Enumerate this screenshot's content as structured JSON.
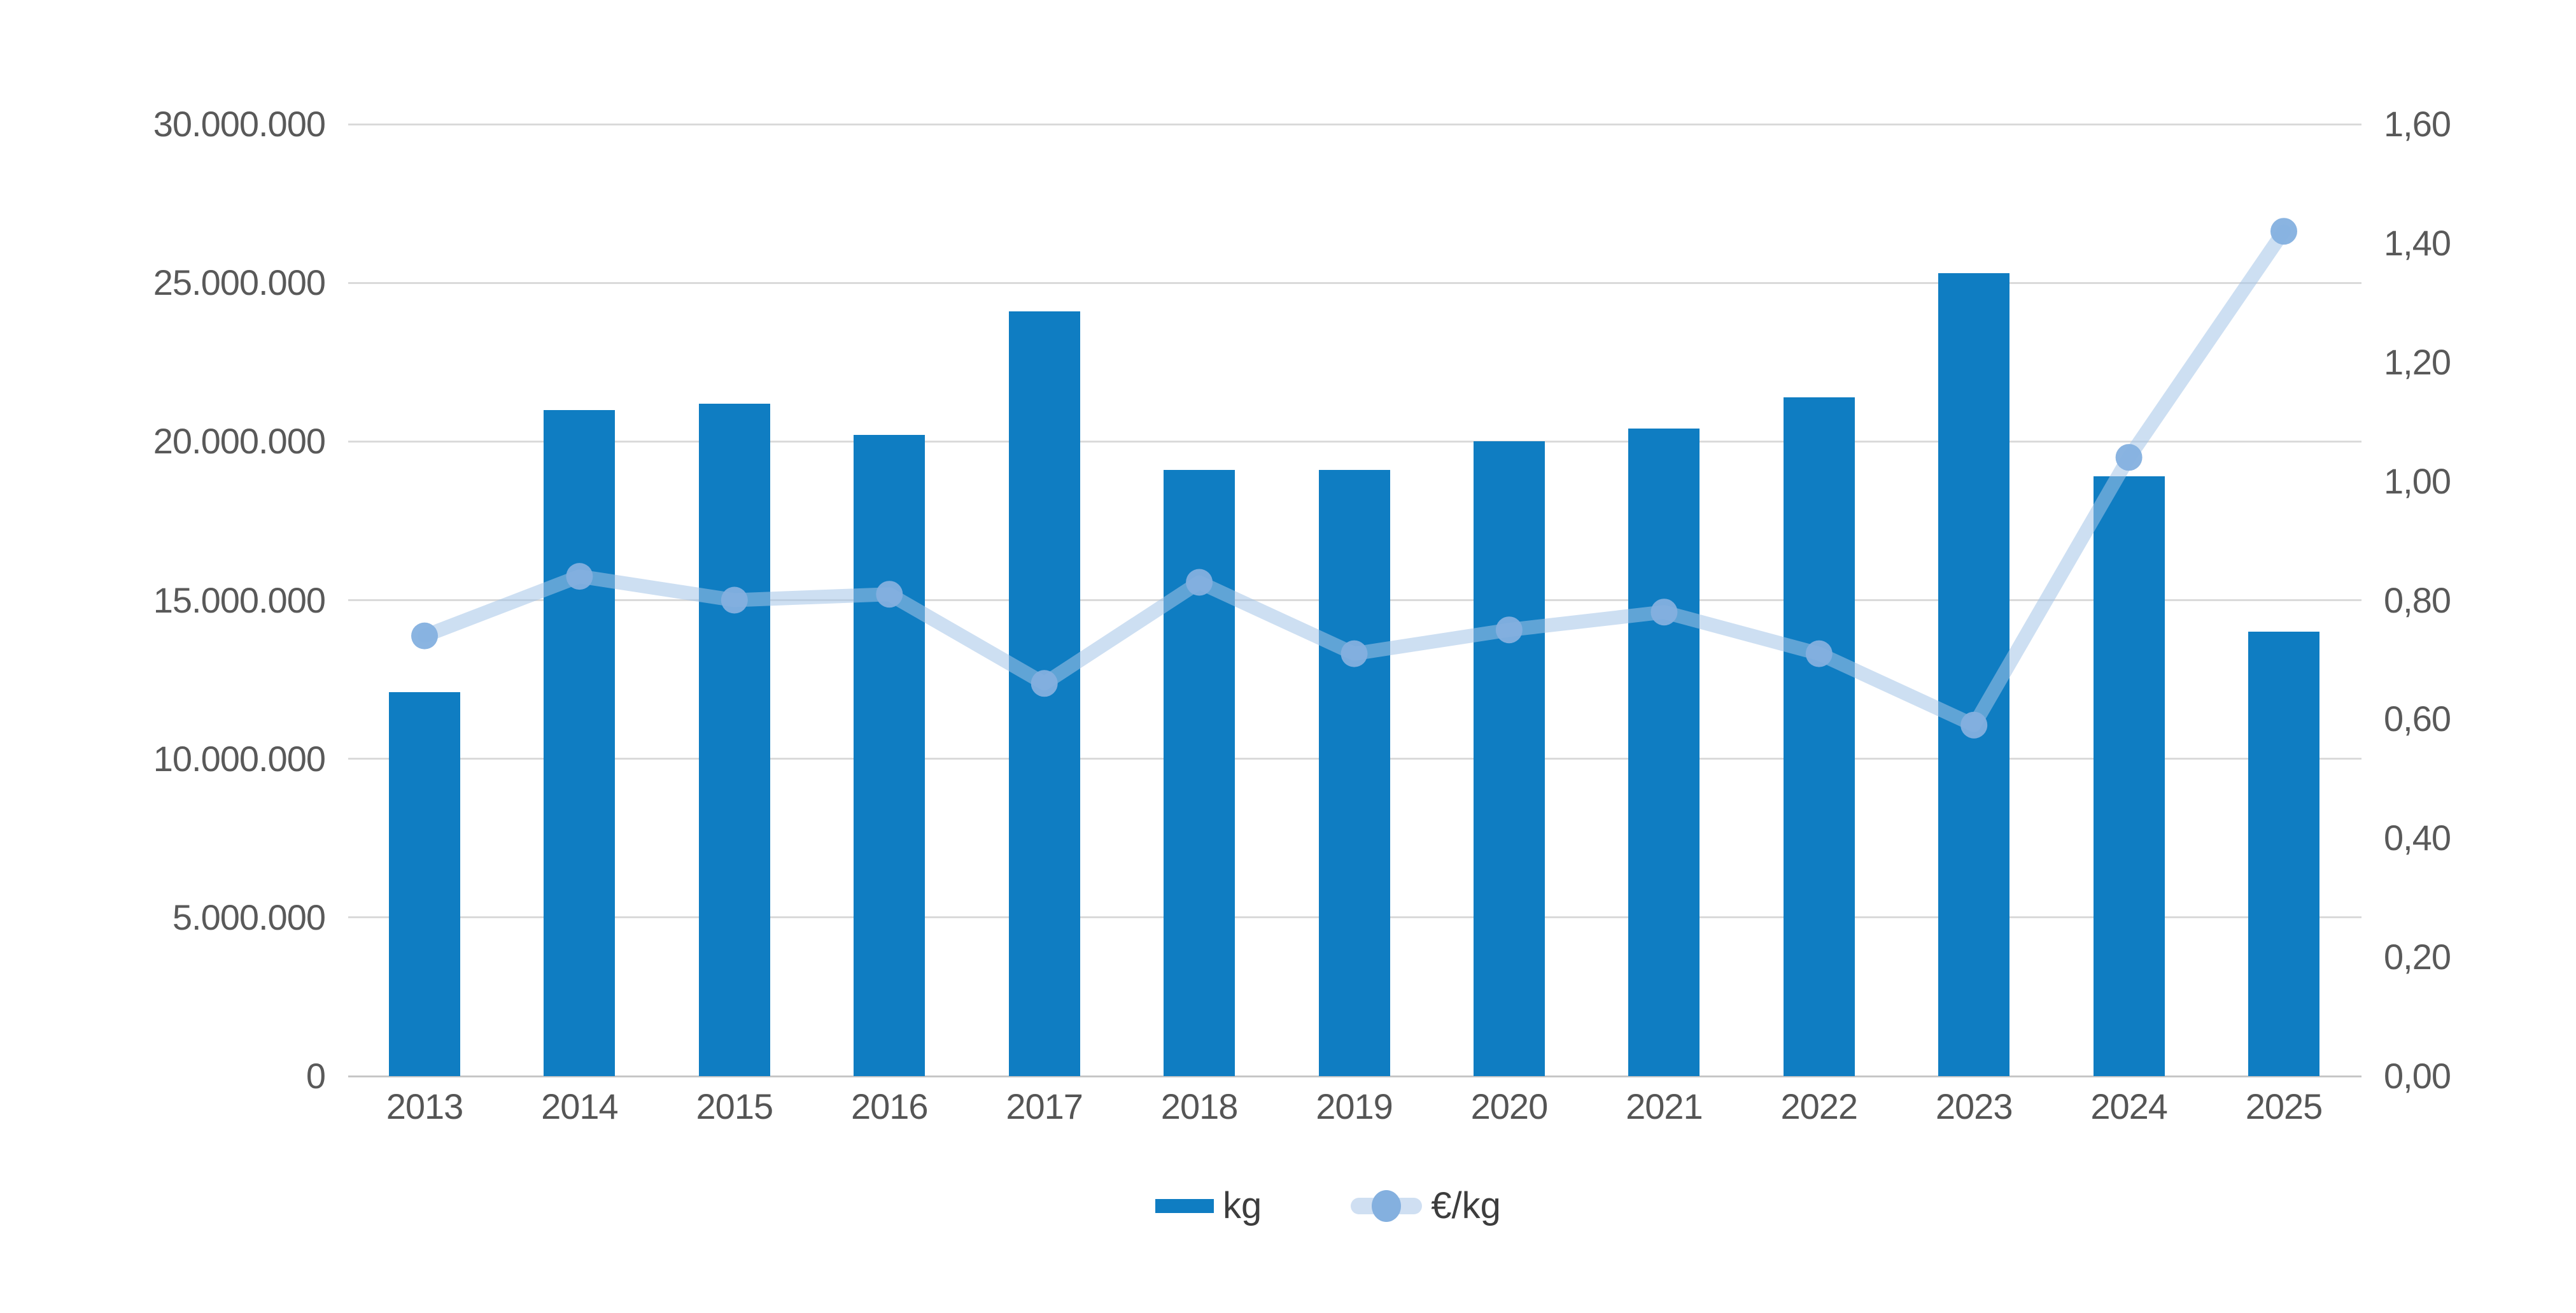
{
  "chart_data": {
    "type": "combo_bar_line",
    "title": "",
    "categories": [
      "2013",
      "2014",
      "2015",
      "2016",
      "2017",
      "2018",
      "2019",
      "2020",
      "2021",
      "2022",
      "2023",
      "2024",
      "2025"
    ],
    "series": [
      {
        "name": "kg",
        "chart": "bar",
        "axis": "left",
        "values": [
          12100000,
          21000000,
          21200000,
          20200000,
          24100000,
          19100000,
          19100000,
          20000000,
          20400000,
          21400000,
          25300000,
          18900000,
          14000000
        ]
      },
      {
        "name": "€/kg",
        "chart": "line",
        "axis": "right",
        "marker": "dot",
        "values": [
          0.74,
          0.84,
          0.8,
          0.81,
          0.66,
          0.83,
          0.71,
          0.75,
          0.78,
          0.71,
          0.59,
          1.04,
          1.42
        ]
      }
    ],
    "left_axis": {
      "min": 0,
      "max": 30000000,
      "tick_step": 5000000,
      "ticks": [
        {
          "value": 0,
          "label": "0"
        },
        {
          "value": 5000000,
          "label": "5.000.000"
        },
        {
          "value": 10000000,
          "label": "10.000.000"
        },
        {
          "value": 15000000,
          "label": "15.000.000"
        },
        {
          "value": 20000000,
          "label": "20.000.000"
        },
        {
          "value": 25000000,
          "label": "25.000.000"
        },
        {
          "value": 30000000,
          "label": "30.000.000"
        }
      ]
    },
    "right_axis": {
      "min": 0,
      "max": 1.6,
      "tick_step": 0.2,
      "ticks": [
        {
          "value": 0.0,
          "label": "0,00"
        },
        {
          "value": 0.2,
          "label": "0,20"
        },
        {
          "value": 0.4,
          "label": "0,40"
        },
        {
          "value": 0.6,
          "label": "0,60"
        },
        {
          "value": 0.8,
          "label": "0,80"
        },
        {
          "value": 1.0,
          "label": "1,00"
        },
        {
          "value": 1.2,
          "label": "1,20"
        },
        {
          "value": 1.4,
          "label": "1,40"
        },
        {
          "value": 1.6,
          "label": "1,60"
        }
      ]
    },
    "grid": "horizontal",
    "legend_position": "bottom"
  },
  "legend": {
    "items": [
      {
        "label": "kg"
      },
      {
        "label": "€/kg"
      }
    ]
  },
  "colors": {
    "background": "#ffffff",
    "bar": "#0f7dc2",
    "line": "rgba(164,196,232,0.55)",
    "line_legend": "#cfdff2",
    "dot": "#84b0df",
    "grid": "#dadada",
    "axis_line": "#c6c6c6",
    "tick_text": "#595959",
    "label_text": "#555555",
    "legend_text": "#3d3d3d"
  }
}
